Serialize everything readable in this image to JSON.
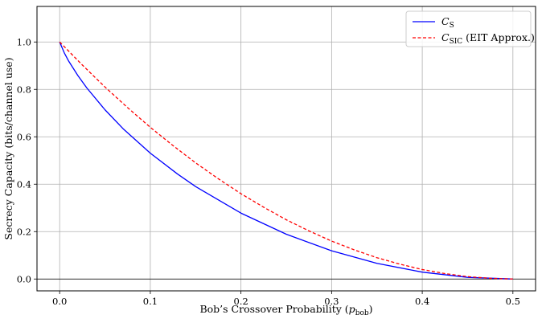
{
  "chart_data": {
    "type": "line",
    "title": "",
    "xlabel": {
      "main": "Bob’s Crossover Probability (",
      "var": "p",
      "sub": "bob",
      "close": ")"
    },
    "ylabel": "Secrecy Capacity (bits/channel use)",
    "xlim": [
      -0.025,
      0.525
    ],
    "ylim": [
      -0.05,
      1.15
    ],
    "xticks": [
      0.0,
      0.1,
      0.2,
      0.3,
      0.4,
      0.5
    ],
    "xtick_labels": [
      "0.0",
      "0.1",
      "0.2",
      "0.3",
      "0.4",
      "0.5"
    ],
    "yticks": [
      0.0,
      0.2,
      0.4,
      0.6,
      0.8,
      1.0
    ],
    "ytick_labels": [
      "0.0",
      "0.2",
      "0.4",
      "0.6",
      "0.8",
      "1.0"
    ],
    "grid": true,
    "reference_line_y": 0.0,
    "legend_position": "top-right",
    "series": [
      {
        "name": {
          "var": "C",
          "sub": "S",
          "suffix": ""
        },
        "color": "#0000ff",
        "dash": "solid",
        "x": [
          0.0,
          0.005,
          0.01,
          0.02,
          0.03,
          0.05,
          0.07,
          0.1,
          0.13,
          0.15,
          0.2,
          0.25,
          0.3,
          0.35,
          0.4,
          0.45,
          0.5
        ],
        "y": [
          1.0,
          0.955,
          0.919,
          0.859,
          0.806,
          0.714,
          0.634,
          0.531,
          0.443,
          0.39,
          0.278,
          0.189,
          0.119,
          0.066,
          0.029,
          0.007,
          0.0
        ]
      },
      {
        "name": {
          "var": "C",
          "sub": "SIC",
          "suffix": " (EIT Approx.)"
        },
        "color": "#ff0000",
        "dash": "dashed",
        "x": [
          0.0,
          0.025,
          0.05,
          0.075,
          0.1,
          0.125,
          0.15,
          0.175,
          0.2,
          0.225,
          0.25,
          0.275,
          0.3,
          0.325,
          0.35,
          0.375,
          0.4,
          0.425,
          0.45,
          0.475,
          0.5
        ],
        "y": [
          1.0,
          0.903,
          0.81,
          0.723,
          0.64,
          0.563,
          0.49,
          0.423,
          0.36,
          0.303,
          0.25,
          0.203,
          0.16,
          0.123,
          0.09,
          0.063,
          0.04,
          0.023,
          0.01,
          0.003,
          0.0
        ]
      }
    ]
  }
}
